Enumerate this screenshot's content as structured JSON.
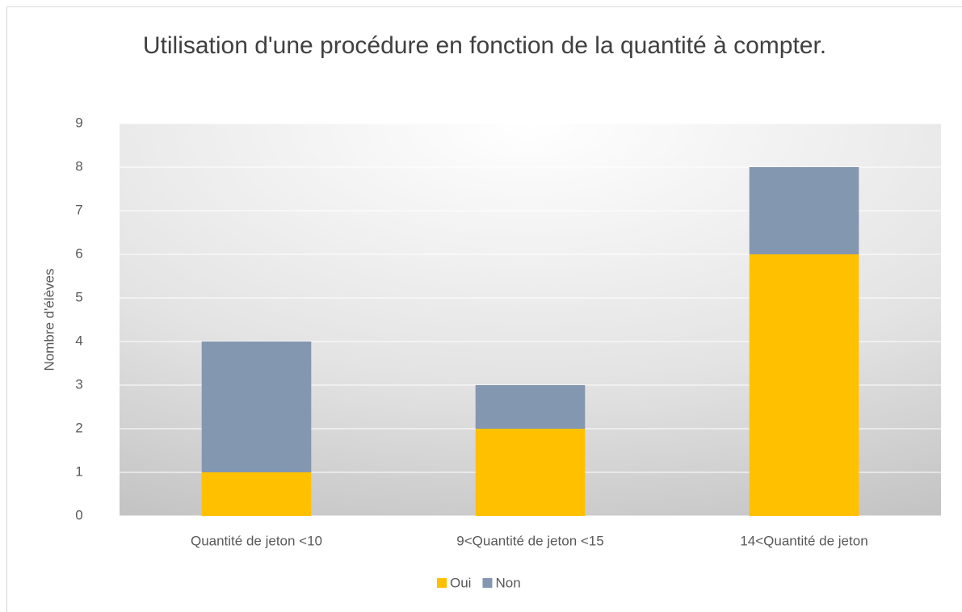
{
  "chart_data": {
    "type": "stacked_bar",
    "title": "Utilisation d'une procédure en fonction de la quantité à compter.",
    "y_label": "Nombre d'élèves",
    "categories": [
      "Quantité de jeton <10",
      "9<Quantité de jeton <15",
      "14<Quantité de jeton"
    ],
    "series": [
      {
        "name": "Oui",
        "color": "#ffc000",
        "values": [
          1,
          2,
          6
        ]
      },
      {
        "name": "Non",
        "color": "#8497b0",
        "values": [
          3,
          1,
          2
        ]
      }
    ],
    "ylim": [
      0,
      9
    ],
    "yticks": [
      0,
      1,
      2,
      3,
      4,
      5,
      6,
      7,
      8,
      9
    ],
    "grid": true,
    "legend": "bottom"
  }
}
